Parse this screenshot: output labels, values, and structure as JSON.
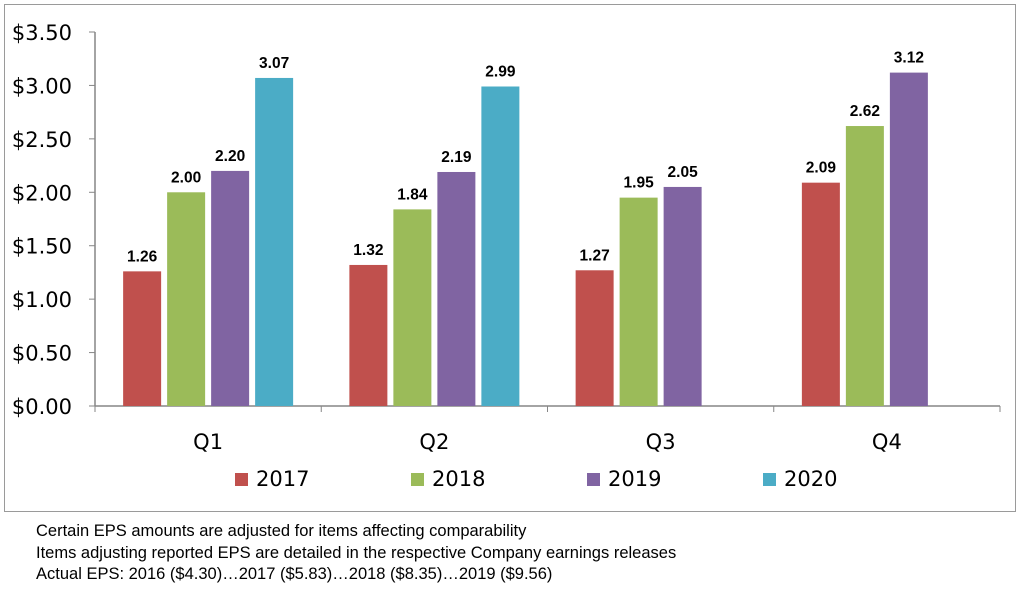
{
  "chart_data": {
    "type": "bar",
    "title": "",
    "xlabel": "",
    "ylabel": "",
    "ylim": [
      0,
      3.5
    ],
    "ytick_step": 0.5,
    "ytick_labels": [
      "$0.00",
      "$0.50",
      "$1.00",
      "$1.50",
      "$2.00",
      "$2.50",
      "$3.00",
      "$3.50"
    ],
    "categories": [
      "Q1",
      "Q2",
      "Q3",
      "Q4"
    ],
    "series": [
      {
        "name": "2017",
        "color": "#c0504d",
        "values": [
          1.26,
          1.32,
          1.27,
          2.09
        ],
        "labels": [
          "1.26",
          "1.32",
          "1.27",
          "2.09"
        ]
      },
      {
        "name": "2018",
        "color": "#9bbb59",
        "values": [
          2.0,
          1.84,
          1.95,
          2.62
        ],
        "labels": [
          "2.00",
          "1.84",
          "1.95",
          "2.62"
        ]
      },
      {
        "name": "2019",
        "color": "#8064a2",
        "values": [
          2.2,
          2.19,
          2.05,
          3.12
        ],
        "labels": [
          "2.20",
          "2.19",
          "2.05",
          "3.12"
        ]
      },
      {
        "name": "2020",
        "color": "#4bacc6",
        "values": [
          3.07,
          2.99,
          null,
          null
        ],
        "labels": [
          "3.07",
          "2.99",
          null,
          null
        ]
      }
    ],
    "legend_position": "bottom",
    "grid": false
  },
  "notes": [
    "Certain EPS amounts are adjusted for items affecting comparability",
    "Items adjusting reported EPS are detailed in the respective Company earnings releases",
    "Actual EPS: 2016 ($4.30)…2017 ($5.83)…2018 ($8.35)…2019 ($9.56)"
  ]
}
